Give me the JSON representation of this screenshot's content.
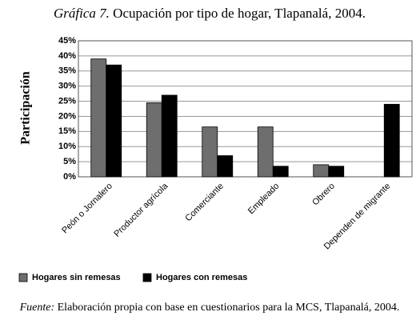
{
  "chart_data": {
    "type": "bar",
    "title_label": "Gráfica 7.",
    "title": "Ocupación por tipo de hogar, Tlapanalá, 2004.",
    "y_label": "Participación",
    "categories": [
      "Peón o Jornalero",
      "Productor agrícola",
      "Comerciante",
      "Empleado",
      "Obrero",
      "Dependen de migrante"
    ],
    "series": [
      {
        "name": "Hogares sin remesas",
        "color": "#6e6e6e",
        "values": [
          39,
          24.5,
          16.5,
          16.5,
          4,
          0
        ]
      },
      {
        "name": "Hogares con remesas",
        "color": "#000000",
        "values": [
          37,
          27,
          7,
          3.5,
          3.5,
          24
        ]
      }
    ],
    "ylim": [
      0,
      45
    ],
    "yticks": [
      {
        "value": 0,
        "label": "0%"
      },
      {
        "value": 5,
        "label": "5%"
      },
      {
        "value": 10,
        "label": "10%"
      },
      {
        "value": 15,
        "label": "15%"
      },
      {
        "value": 20,
        "label": "20%"
      },
      {
        "value": 25,
        "label": "25%"
      },
      {
        "value": 30,
        "label": "30%"
      },
      {
        "value": 35,
        "label": "35%"
      },
      {
        "value": 40,
        "label": "40%"
      },
      {
        "value": 45,
        "label": "45%"
      }
    ],
    "grid": true,
    "source_label": "Fuente:",
    "source": "Elaboración propia con base en cuestionarios para la MCS, Tlapanalá, 2004."
  }
}
